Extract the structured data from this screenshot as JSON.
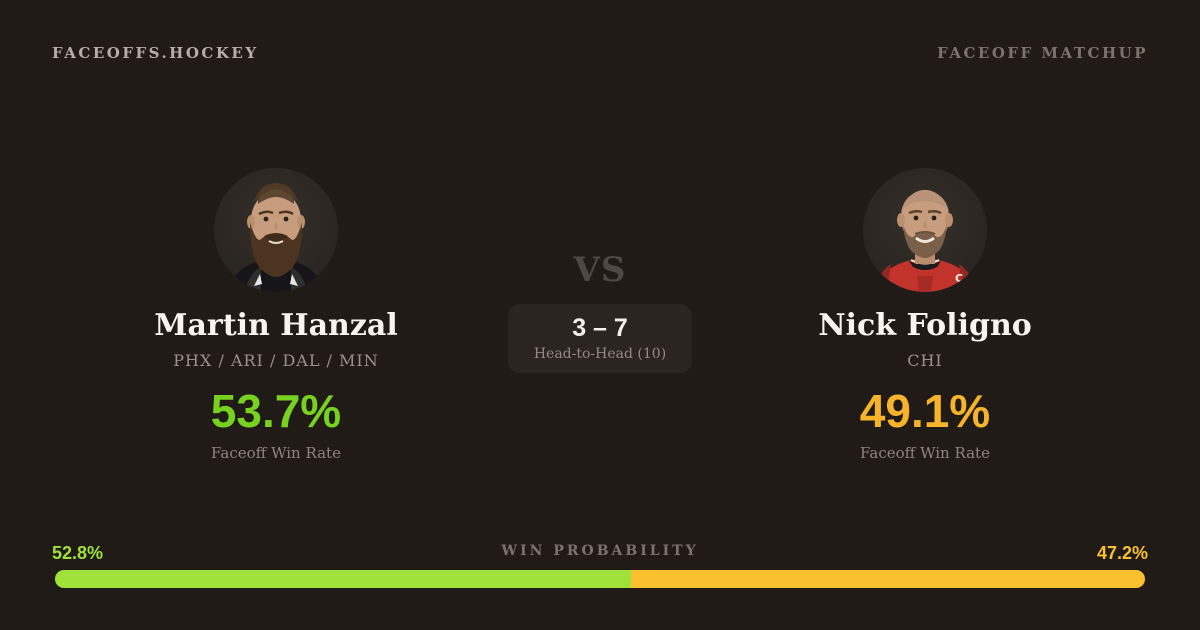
{
  "header": {
    "brand": "FACEOFFS.HOCKEY",
    "page_label": "FACEOFF MATCHUP"
  },
  "players": {
    "left": {
      "name": "Martin Hanzal",
      "teams": "PHX / ARI / DAL / MIN",
      "win_rate": "53.7%",
      "win_rate_label": "Faceoff Win Rate",
      "accent_color": "#76d21f"
    },
    "right": {
      "name": "Nick Foligno",
      "teams": "CHI",
      "win_rate": "49.1%",
      "win_rate_label": "Faceoff Win Rate",
      "accent_color": "#f7b42a"
    }
  },
  "matchup": {
    "vs_label": "VS",
    "head_to_head_score": "3 – 7",
    "head_to_head_label": "Head-to-Head (10)"
  },
  "win_probability": {
    "title": "WIN PROBABILITY",
    "left_value": "52.8%",
    "right_value": "47.2%",
    "left_percent": 52.8,
    "right_percent": 47.2,
    "left_color": "#a0e23a",
    "right_color": "#fbc02d"
  }
}
